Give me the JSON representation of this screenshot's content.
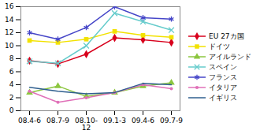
{
  "chart_data": {
    "type": "line",
    "categories": [
      "08.4-6",
      "08.7-9",
      "08.10-12",
      "09.1-3",
      "09.4-6",
      "09.7-9"
    ],
    "ylim": [
      0,
      16
    ],
    "yticks": [
      0,
      2,
      4,
      6,
      8,
      10,
      12,
      14,
      16
    ],
    "grid": false,
    "legend": "right",
    "series": [
      {
        "name": "EU 27カ国",
        "color": "#d8001c",
        "marker": "diamond",
        "values": [
          7.7,
          7.2,
          8.7,
          11.2,
          10.9,
          10.5
        ]
      },
      {
        "name": "ドイツ",
        "color": "#f2e200",
        "marker": "square",
        "values": [
          10.8,
          10.5,
          11.0,
          12.2,
          11.6,
          11.3
        ]
      },
      {
        "name": "アイルランド",
        "color": "#8cc63f",
        "marker": "triangle",
        "values": [
          2.8,
          3.8,
          2.2,
          2.8,
          3.8,
          4.3
        ]
      },
      {
        "name": "スペイン",
        "color": "#66cccc",
        "marker": "times",
        "values": [
          7.6,
          7.3,
          10.0,
          15.0,
          13.7,
          12.4
        ]
      },
      {
        "name": "フランス",
        "color": "#4646c8",
        "marker": "asterisk",
        "values": [
          12.0,
          11.0,
          12.8,
          16.0,
          14.3,
          14.1
        ]
      },
      {
        "name": "イタリア",
        "color": "#e070b8",
        "marker": "circle",
        "values": [
          3.0,
          1.3,
          2.0,
          2.8,
          4.0,
          3.4
        ]
      },
      {
        "name": "イギリス",
        "color": "#2f5f8f",
        "marker": "none",
        "values": [
          3.6,
          3.0,
          2.6,
          2.8,
          4.2,
          4.0
        ]
      }
    ]
  }
}
